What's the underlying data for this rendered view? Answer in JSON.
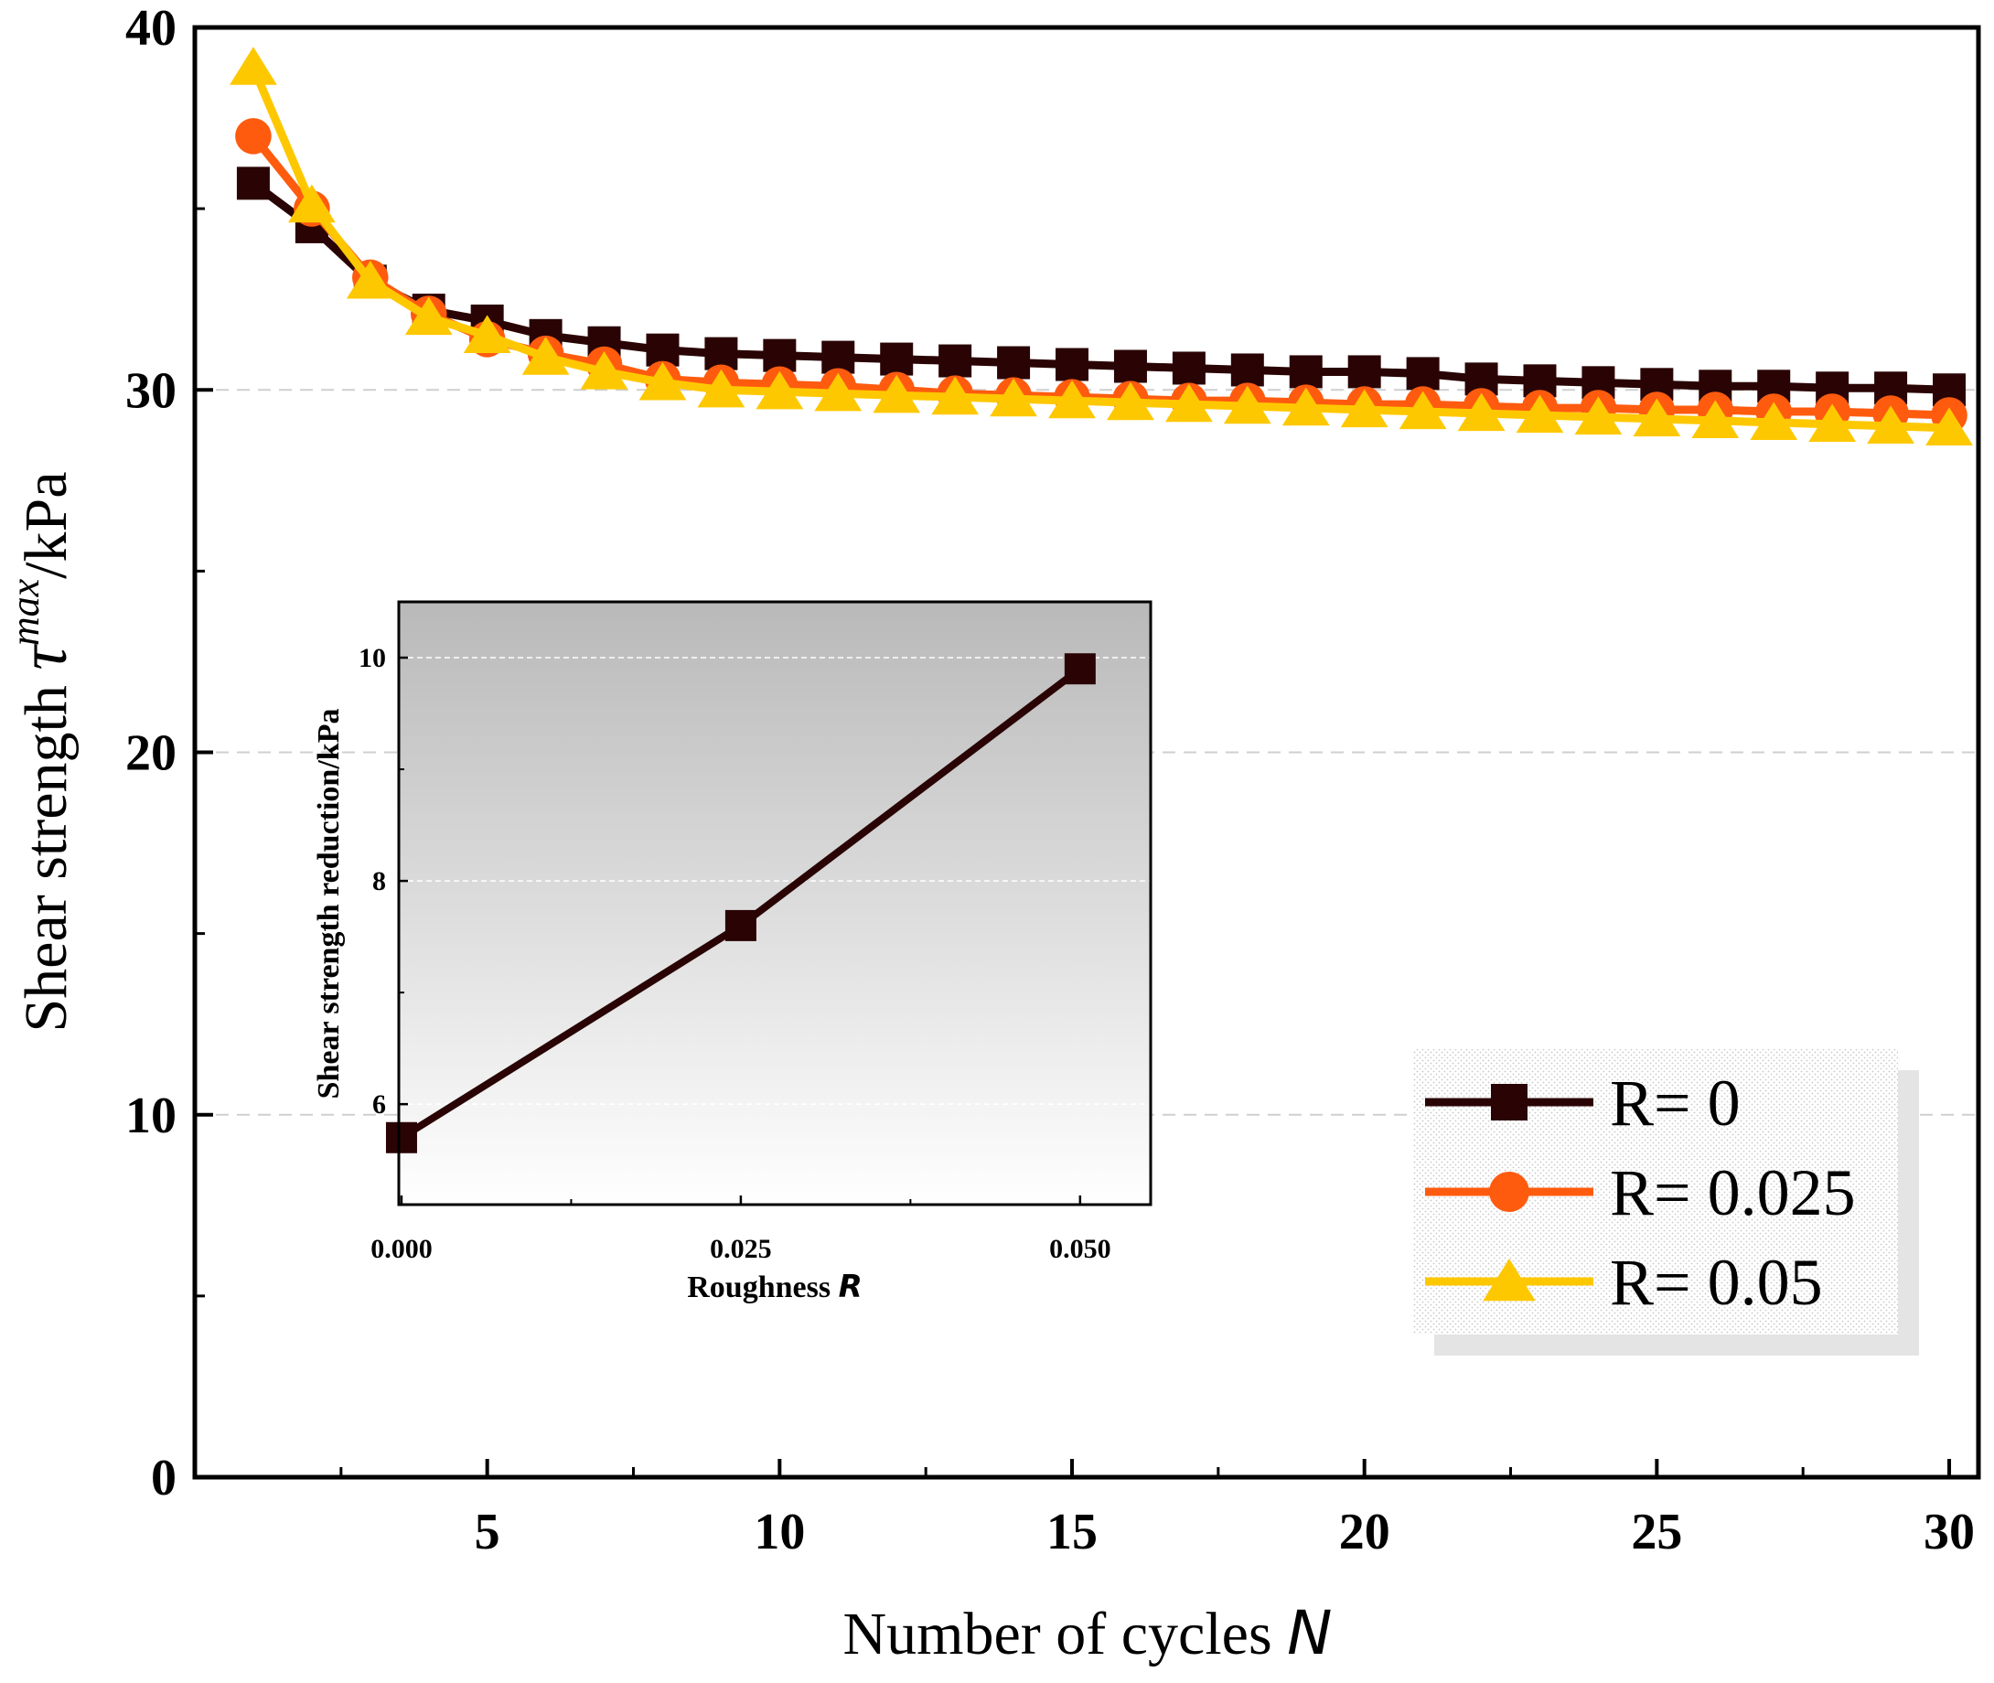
{
  "chart_data": [
    {
      "type": "line",
      "xlabel": "Number of cycles",
      "xlabel_var": "N",
      "ylabel": "Shear strength ",
      "ylabel_symbol": "τ",
      "ylabel_superscript": "max",
      "ylabel_unit": "/kPa",
      "xlim": [
        0.0,
        30.5
      ],
      "ylim": [
        0,
        40
      ],
      "x_ticks": [
        5,
        10,
        15,
        20,
        25,
        30
      ],
      "y_ticks": [
        0,
        10,
        20,
        30,
        40
      ],
      "grid": "dashed horizontal at major y ticks",
      "legend_position": "lower-right",
      "x": [
        1,
        2,
        3,
        4,
        5,
        6,
        7,
        8,
        9,
        10,
        11,
        12,
        13,
        14,
        15,
        16,
        17,
        18,
        19,
        20,
        21,
        22,
        23,
        24,
        25,
        26,
        27,
        28,
        29,
        30
      ],
      "series": [
        {
          "name": "R= 0",
          "color": "#2a0404",
          "marker": "square",
          "values": [
            35.7,
            34.5,
            33.0,
            32.2,
            31.9,
            31.5,
            31.3,
            31.1,
            31.0,
            30.95,
            30.9,
            30.85,
            30.8,
            30.75,
            30.7,
            30.65,
            30.6,
            30.55,
            30.5,
            30.5,
            30.45,
            30.3,
            30.25,
            30.2,
            30.15,
            30.1,
            30.1,
            30.05,
            30.05,
            30.0
          ]
        },
        {
          "name": "R= 0.025",
          "color": "#fe5b0f",
          "marker": "circle",
          "values": [
            37.0,
            35.0,
            33.1,
            32.1,
            31.4,
            31.0,
            30.7,
            30.3,
            30.2,
            30.15,
            30.1,
            30.0,
            29.9,
            29.85,
            29.8,
            29.75,
            29.7,
            29.7,
            29.65,
            29.6,
            29.6,
            29.55,
            29.5,
            29.5,
            29.45,
            29.45,
            29.4,
            29.4,
            29.35,
            29.3
          ]
        },
        {
          "name": "R= 0.05",
          "color": "#fec800",
          "marker": "triangle",
          "values": [
            38.9,
            35.1,
            33.0,
            32.0,
            31.5,
            30.9,
            30.5,
            30.2,
            30.0,
            29.95,
            29.9,
            29.85,
            29.8,
            29.75,
            29.7,
            29.65,
            29.6,
            29.55,
            29.5,
            29.45,
            29.4,
            29.35,
            29.3,
            29.25,
            29.2,
            29.15,
            29.1,
            29.05,
            29.0,
            28.95
          ]
        }
      ]
    },
    {
      "type": "line",
      "role": "inset",
      "xlabel": "Roughness ",
      "xlabel_var": "R",
      "ylabel": "Shear strength reduction/kPa",
      "xlim": [
        -0.0002,
        0.0552
      ],
      "ylim": [
        5.1,
        10.5
      ],
      "x_ticks": [
        "0.000",
        "0.025",
        "0.050"
      ],
      "x_tick_values": [
        0.0,
        0.025,
        0.05
      ],
      "y_ticks": [
        6,
        8,
        10
      ],
      "series": [
        {
          "name": "reduction",
          "color": "#2a0404",
          "marker": "square",
          "x": [
            0.0,
            0.025,
            0.05
          ],
          "values": [
            5.7,
            7.6,
            9.9
          ]
        }
      ]
    }
  ]
}
